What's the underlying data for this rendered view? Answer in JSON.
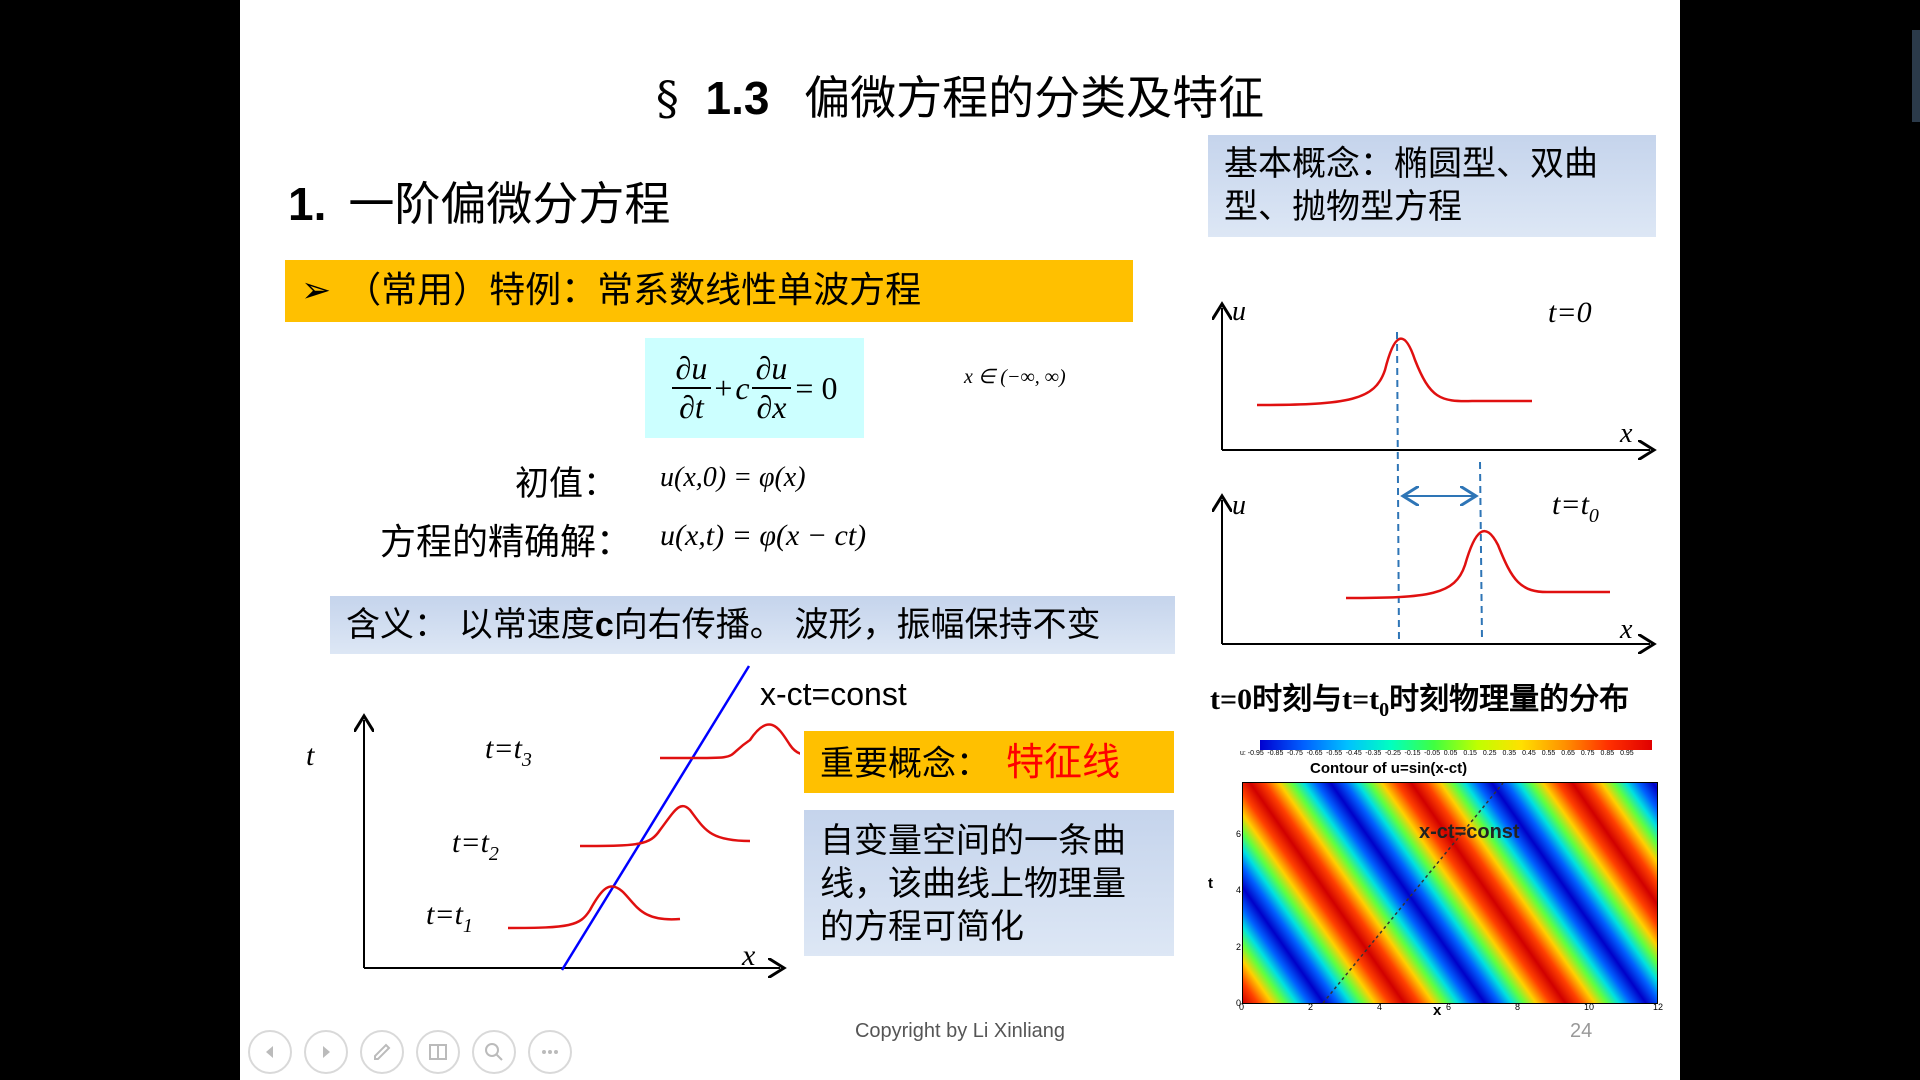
{
  "slide": {
    "title_symbol": "§",
    "title_number": "1.3",
    "title_text": "偏微方程的分类及特征",
    "section_number": "1.",
    "section_title": "一阶偏微分方程",
    "example_bullet": "➢",
    "example_label": "（常用）特例：常系数线性单波方程",
    "basic_concept": "基本概念：椭圆型、双曲型、抛物型方程",
    "equation": {
      "d1": "∂u",
      "d2": "∂t",
      "plus": "+",
      "c": "c",
      "d3": "∂u",
      "d4": "∂x",
      "equals": "= 0",
      "domain": "x ∈ (−∞, ∞)"
    },
    "initial_label": "初值：",
    "initial_formula": "u(x,0) = φ(x)",
    "exact_label": "方程的精确解：",
    "exact_formula": "u(x,t) = φ(x − ct)",
    "meaning_prefix": "含义： 以常速度",
    "meaning_c": "c",
    "meaning_suffix": "向右传播。 波形，振幅保持不变",
    "const_label": "x-ct=const",
    "important_label": "重要概念：",
    "important_value": "特征线",
    "char_desc": "自变量空间的一条曲线，该曲线上物理量的方程可简化",
    "wave_caption_a": "t=0时刻与t=t",
    "wave_caption_sub": "0",
    "wave_caption_b": "时刻物理量的分布",
    "copyright": "Copyright by Li Xinliang",
    "page_number": "24",
    "char_plot": {
      "t_axis": "t",
      "x_axis": "x",
      "t3": "t=t",
      "t3_sub": "3",
      "t2": "t=t",
      "t2_sub": "2",
      "t1": "t=t",
      "t1_sub": "1"
    },
    "wave_plot": {
      "u_label": "u",
      "x_label": "x",
      "top_time": "t=0",
      "bottom_time": "t=t",
      "bottom_time_sub": "0"
    },
    "contour": {
      "title": "Contour of  u=sin(x-ct)",
      "annotation": "x-ct=const",
      "xlabel": "x",
      "ylabel": "t",
      "x_ticks": [
        "0",
        "2",
        "4",
        "6",
        "8",
        "10",
        "12"
      ],
      "y_ticks": [
        "0",
        "2",
        "4",
        "6"
      ],
      "colorbar_label": "u:",
      "colorbar_ticks": [
        "-0.95",
        "-0.85",
        "-0.75",
        "-0.65",
        "-0.55",
        "-0.45",
        "-0.35",
        "-0.25",
        "-0.15",
        "-0.05",
        "0.05",
        "0.15",
        "0.25",
        "0.35",
        "0.45",
        "0.55",
        "0.65",
        "0.75",
        "0.85",
        "0.95"
      ]
    }
  },
  "toolbar": {
    "buttons": [
      "prev-icon",
      "next-icon",
      "pen-icon",
      "slides-icon",
      "zoom-icon",
      "more-icon"
    ]
  }
}
